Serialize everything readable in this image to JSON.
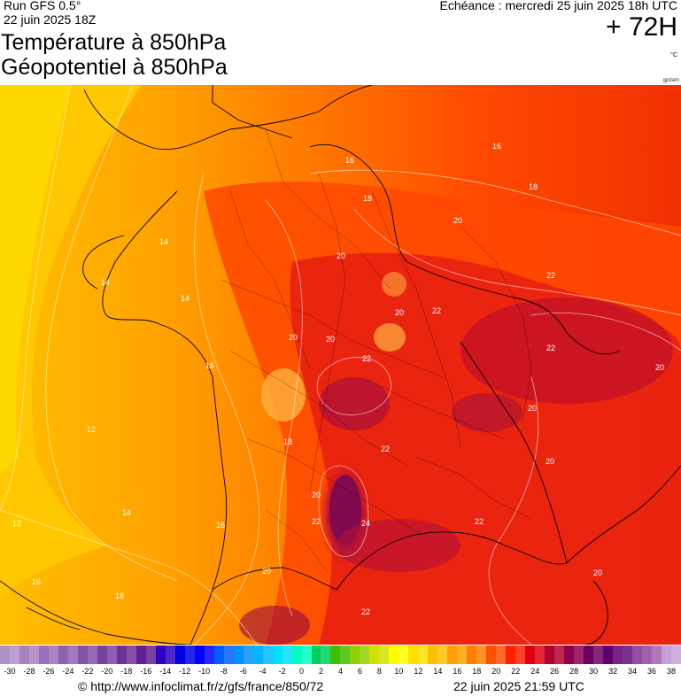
{
  "header": {
    "run": "Run GFS 0.5°",
    "run_date": "22 juin 2025 18Z",
    "title_line1": "Température à 850hPa",
    "title_line2": "Géopotentiel à 850hPa",
    "echeance": "Echéance : mercredi 25 juin 2025 18h UTC",
    "offset": "+ 72H",
    "unit": "°C",
    "small_credit": "gpdam"
  },
  "map": {
    "isotherm_labels": [
      "16",
      "18",
      "14",
      "14",
      "20",
      "16",
      "18",
      "20",
      "20",
      "22",
      "20",
      "22",
      "20",
      "22",
      "16",
      "14",
      "12",
      "20",
      "22",
      "18",
      "12",
      "14",
      "20",
      "16",
      "22",
      "20",
      "24",
      "22",
      "22",
      "20",
      "20",
      "16",
      "18",
      "20",
      "22"
    ]
  },
  "scale": {
    "labels": [
      "-30",
      "-28",
      "-26",
      "-24",
      "-22",
      "-20",
      "-18",
      "-16",
      "-14",
      "-12",
      "-10",
      "-8",
      "-6",
      "-4",
      "-2",
      "0",
      "2",
      "4",
      "6",
      "8",
      "10",
      "12",
      "14",
      "16",
      "18",
      "20",
      "22",
      "24",
      "26",
      "28",
      "30",
      "32",
      "34",
      "36",
      "38"
    ],
    "colors": [
      "#b090c8",
      "#a880c0",
      "#9c70b8",
      "#9060b0",
      "#8450a8",
      "#7840a0",
      "#6c3098",
      "#602090",
      "#3000c0",
      "#0000e0",
      "#0000ff",
      "#0060ff",
      "#0090ff",
      "#00b8ff",
      "#00e0ff",
      "#00ffc0",
      "#00d060",
      "#40c000",
      "#90d000",
      "#d0e000",
      "#ffff00",
      "#ffe000",
      "#ffc000",
      "#ffa000",
      "#ff8000",
      "#ff5000",
      "#ff2000",
      "#e00010",
      "#b00030",
      "#8c0050",
      "#700060",
      "#600070",
      "#7c3090",
      "#a060b0",
      "#c8a0d8"
    ]
  },
  "footer": {
    "url": "© http://www.infoclimat.fr/z/gfs/france/850/72",
    "timestamp": "22 juin 2025 21:59 UTC"
  }
}
